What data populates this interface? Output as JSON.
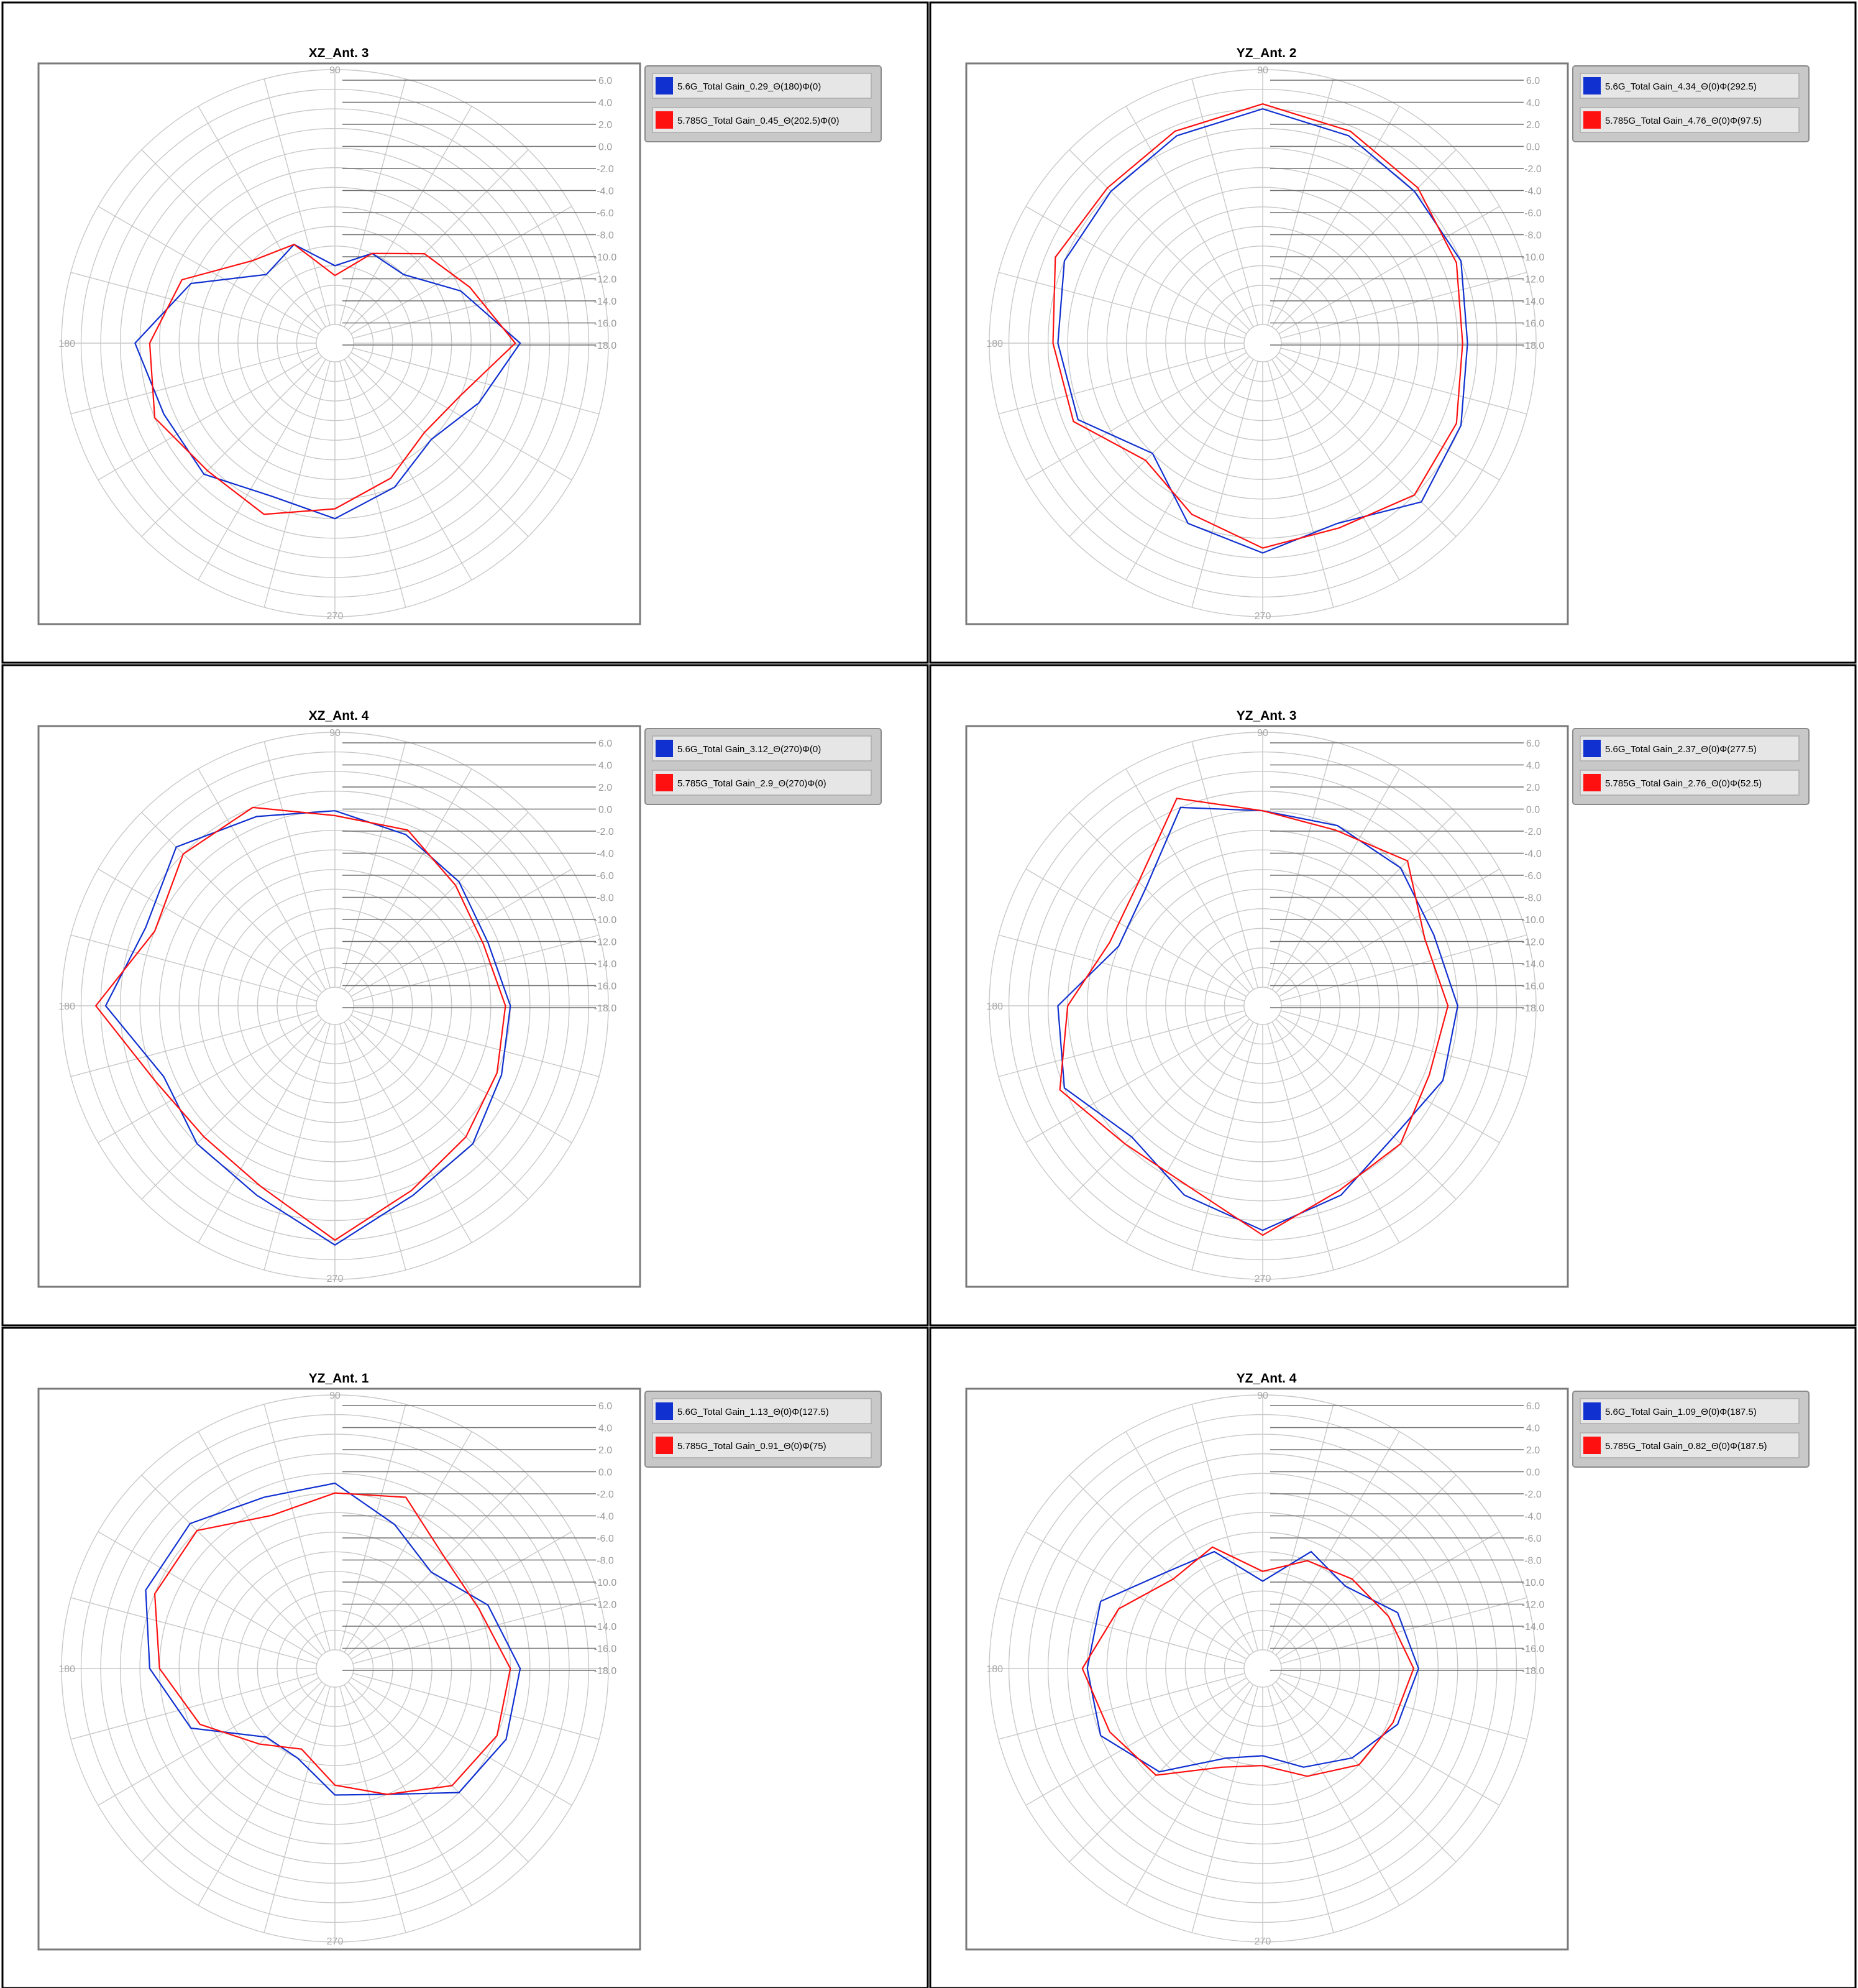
{
  "chart_data": [
    {
      "type": "polar-line",
      "title": "XZ_Ant. 3",
      "radial_ticks": [
        "6.0",
        "4.0",
        "2.0",
        "0.0",
        "-2.0",
        "-4.0",
        "-6.0",
        "-8.0",
        "-10.0",
        "-12.0",
        "-14.0",
        "-16.0",
        "-18.0"
      ],
      "radial_range": [
        -20,
        6
      ],
      "angle_labels": {
        "top": "90",
        "left": "180",
        "bottom": "270"
      },
      "legend_position": "top-right",
      "angle_step_deg": 22.5,
      "series": [
        {
          "name": "5.6G_Total Gain_0.29_Θ(180)Φ(0)",
          "color": "#1030d0",
          "angles": [
            0,
            22.5,
            45,
            67.5,
            90,
            112.5,
            135,
            157.5,
            180,
            202.5,
            225,
            247.5,
            270,
            292.5,
            315,
            337.5
          ],
          "values": [
            -3.0,
            -8.0,
            -12.0,
            -12.0,
            -14.0,
            -11.0,
            -12.0,
            -6.0,
            -1.5,
            -3.0,
            -3.0,
            -5.0,
            -4.0,
            -6.0,
            -8.0,
            -6.0
          ]
        },
        {
          "name": "5.785G_Total Gain_0.45_Θ(202.5)Φ(0)",
          "color": "#ff1010",
          "angles": [
            0,
            22.5,
            45,
            67.5,
            90,
            112.5,
            135,
            157.5,
            180,
            202.5,
            225,
            247.5,
            270,
            292.5,
            315,
            337.5
          ],
          "values": [
            -3.5,
            -7.0,
            -9.0,
            -12.0,
            -15.0,
            -11.0,
            -10.0,
            -5.0,
            -3.0,
            -2.0,
            -3.5,
            -3.0,
            -5.0,
            -7.0,
            -9.0,
            -8.0
          ]
        }
      ]
    },
    {
      "type": "polar-line",
      "title": "YZ_Ant. 2",
      "radial_ticks": [
        "6.0",
        "4.0",
        "2.0",
        "0.0",
        "-2.0",
        "-4.0",
        "-6.0",
        "-8.0",
        "-10.0",
        "-12.0",
        "-14.0",
        "-16.0",
        "-18.0"
      ],
      "radial_range": [
        -20,
        6
      ],
      "angle_labels": {
        "top": "90",
        "left": "180",
        "bottom": "270"
      },
      "legend_position": "top-right",
      "angle_step_deg": 22.5,
      "series": [
        {
          "name": "5.6G_Total Gain_4.34_Θ(0)Φ(292.5)",
          "color": "#1030d0",
          "angles": [
            0,
            22.5,
            45,
            67.5,
            90,
            112.5,
            135,
            157.5,
            180,
            202.5,
            225,
            247.5,
            270,
            292.5,
            315,
            337.5
          ],
          "values": [
            -1.0,
            0.0,
            0.0,
            1.0,
            2.0,
            1.0,
            0.0,
            0.0,
            -1.0,
            -1.5,
            -6.0,
            -2.0,
            -0.5,
            -2.0,
            1.0,
            0.0
          ]
        },
        {
          "name": "5.785G_Total Gain_4.76_Θ(0)Φ(97.5)",
          "color": "#ff1010",
          "angles": [
            0,
            22.5,
            45,
            67.5,
            90,
            112.5,
            135,
            157.5,
            180,
            202.5,
            225,
            247.5,
            270,
            292.5,
            315,
            337.5
          ],
          "values": [
            -1.5,
            -0.5,
            0.5,
            1.5,
            2.5,
            1.5,
            0.5,
            1.0,
            -0.5,
            -1.0,
            -5.0,
            -3.0,
            -1.0,
            -1.5,
            0.0,
            -0.5
          ]
        }
      ]
    },
    {
      "type": "polar-line",
      "title": "XZ_Ant. 4",
      "radial_ticks": [
        "6.0",
        "4.0",
        "2.0",
        "0.0",
        "-2.0",
        "-4.0",
        "-6.0",
        "-8.0",
        "-10.0",
        "-12.0",
        "-14.0",
        "-16.0",
        "-18.0"
      ],
      "radial_range": [
        -20,
        6
      ],
      "angle_labels": {
        "top": "90",
        "left": "180",
        "bottom": "270"
      },
      "legend_position": "top-right",
      "angle_step_deg": 22.5,
      "series": [
        {
          "name": "5.6G_Total Gain_3.12_Θ(270)Φ(0)",
          "color": "#1030d0",
          "angles": [
            0,
            22.5,
            45,
            67.5,
            90,
            112.5,
            135,
            157.5,
            180,
            202.5,
            225,
            247.5,
            270,
            292.5,
            315,
            337.5
          ],
          "values": [
            -4.0,
            -5.0,
            -4.0,
            -3.0,
            -2.0,
            -1.0,
            1.0,
            -1.0,
            1.5,
            -3.0,
            -2.0,
            -1.0,
            2.5,
            -1.0,
            -2.0,
            -3.5
          ]
        },
        {
          "name": "5.785G_Total Gain_2.9_Θ(270)Φ(0)",
          "color": "#ff1010",
          "angles": [
            0,
            22.5,
            45,
            67.5,
            90,
            112.5,
            135,
            157.5,
            180,
            202.5,
            225,
            247.5,
            270,
            292.5,
            315,
            337.5
          ],
          "values": [
            -4.5,
            -5.5,
            -4.5,
            -2.5,
            -2.5,
            0.0,
            0.0,
            -2.0,
            2.5,
            -2.0,
            -3.0,
            -2.0,
            2.0,
            -1.5,
            -3.0,
            -4.0
          ]
        }
      ]
    },
    {
      "type": "polar-line",
      "title": "YZ_Ant. 3",
      "radial_ticks": [
        "6.0",
        "4.0",
        "2.0",
        "0.0",
        "-2.0",
        "-4.0",
        "-6.0",
        "-8.0",
        "-10.0",
        "-12.0",
        "-14.0",
        "-16.0",
        "-18.0"
      ],
      "radial_range": [
        -20,
        6
      ],
      "angle_labels": {
        "top": "90",
        "left": "180",
        "bottom": "270"
      },
      "legend_position": "top-right",
      "angle_step_deg": 22.5,
      "series": [
        {
          "name": "5.6G_Total Gain_2.37_Θ(0)Φ(277.5)",
          "color": "#1030d0",
          "angles": [
            0,
            22.5,
            45,
            67.5,
            90,
            112.5,
            135,
            157.5,
            180,
            202.5,
            225,
            247.5,
            270,
            292.5,
            315,
            337.5
          ],
          "values": [
            -2.0,
            -3.0,
            -2.0,
            -2.0,
            -2.0,
            0.0,
            -5.0,
            -6.0,
            -1.0,
            0.0,
            -3.0,
            -1.0,
            1.0,
            -1.0,
            -3.0,
            -2.0
          ]
        },
        {
          "name": "5.785G_Total Gain_2.76_Θ(0)Φ(52.5)",
          "color": "#ff1010",
          "angles": [
            0,
            22.5,
            45,
            67.5,
            90,
            112.5,
            135,
            157.5,
            180,
            202.5,
            225,
            247.5,
            270,
            292.5,
            315,
            337.5
          ],
          "values": [
            -3.0,
            -4.0,
            -1.0,
            -2.5,
            -2.0,
            1.0,
            -4.0,
            -5.0,
            -2.0,
            0.5,
            -2.0,
            -2.0,
            1.5,
            -1.5,
            -2.0,
            -3.5
          ]
        }
      ]
    },
    {
      "type": "polar-line",
      "title": "YZ_Ant. 1",
      "radial_ticks": [
        "6.0",
        "4.0",
        "2.0",
        "0.0",
        "-2.0",
        "-4.0",
        "-6.0",
        "-8.0",
        "-10.0",
        "-12.0",
        "-14.0",
        "-16.0",
        "-18.0"
      ],
      "radial_range": [
        -20,
        6
      ],
      "angle_labels": {
        "top": "90",
        "left": "180",
        "bottom": "270"
      },
      "legend_position": "top-right",
      "angle_step_deg": 22.5,
      "series": [
        {
          "name": "5.6G_Total Gain_1.13_Θ(0)Φ(127.5)",
          "color": "#1030d0",
          "angles": [
            0,
            22.5,
            45,
            67.5,
            90,
            112.5,
            135,
            157.5,
            180,
            202.5,
            225,
            247.5,
            270,
            292.5,
            315,
            337.5
          ],
          "values": [
            -3.0,
            -5.0,
            -8.0,
            -6.0,
            -3.0,
            -3.0,
            -1.0,
            -1.0,
            -3.0,
            -6.0,
            -12.0,
            -12.0,
            -9.0,
            -8.0,
            -4.0,
            -3.0
          ]
        },
        {
          "name": "5.785G_Total Gain_0.91_Θ(0)Φ(75)",
          "color": "#ff1010",
          "angles": [
            0,
            22.5,
            45,
            67.5,
            90,
            112.5,
            135,
            157.5,
            180,
            202.5,
            225,
            247.5,
            270,
            292.5,
            315,
            337.5
          ],
          "values": [
            -4.0,
            -6.0,
            -6.0,
            -3.0,
            -4.0,
            -5.0,
            -2.0,
            -2.0,
            -4.0,
            -7.0,
            -11.0,
            -13.0,
            -10.0,
            -8.0,
            -5.0,
            -4.0
          ]
        }
      ]
    },
    {
      "type": "polar-line",
      "title": "YZ_Ant. 4",
      "radial_ticks": [
        "6.0",
        "4.0",
        "2.0",
        "0.0",
        "-2.0",
        "-4.0",
        "-6.0",
        "-8.0",
        "-10.0",
        "-12.0",
        "-14.0",
        "-16.0",
        "-18.0"
      ],
      "radial_range": [
        -20,
        6
      ],
      "angle_labels": {
        "top": "90",
        "left": "180",
        "bottom": "270"
      },
      "legend_position": "top-right",
      "angle_step_deg": 22.5,
      "series": [
        {
          "name": "5.6G_Total Gain_1.09_Θ(0)Φ(187.5)",
          "color": "#1030d0",
          "angles": [
            0,
            22.5,
            45,
            67.5,
            90,
            112.5,
            135,
            157.5,
            180,
            202.5,
            225,
            247.5,
            270,
            292.5,
            315,
            337.5
          ],
          "values": [
            -6.0,
            -7.0,
            -10.0,
            -9.0,
            -13.0,
            -9.0,
            -8.0,
            -4.0,
            -4.0,
            -4.0,
            -7.0,
            -12.0,
            -13.0,
            -11.0,
            -9.0,
            -7.0
          ]
        },
        {
          "name": "5.785G_Total Gain_0.82_Θ(0)Φ(187.5)",
          "color": "#ff1010",
          "angles": [
            0,
            22.5,
            45,
            67.5,
            90,
            112.5,
            135,
            157.5,
            180,
            202.5,
            225,
            247.5,
            270,
            292.5,
            315,
            337.5
          ],
          "values": [
            -6.5,
            -8.0,
            -9.0,
            -10.0,
            -12.0,
            -8.5,
            -9.0,
            -6.0,
            -3.5,
            -5.0,
            -6.5,
            -11.0,
            -12.0,
            -10.0,
            -8.0,
            -7.5
          ]
        }
      ]
    }
  ]
}
